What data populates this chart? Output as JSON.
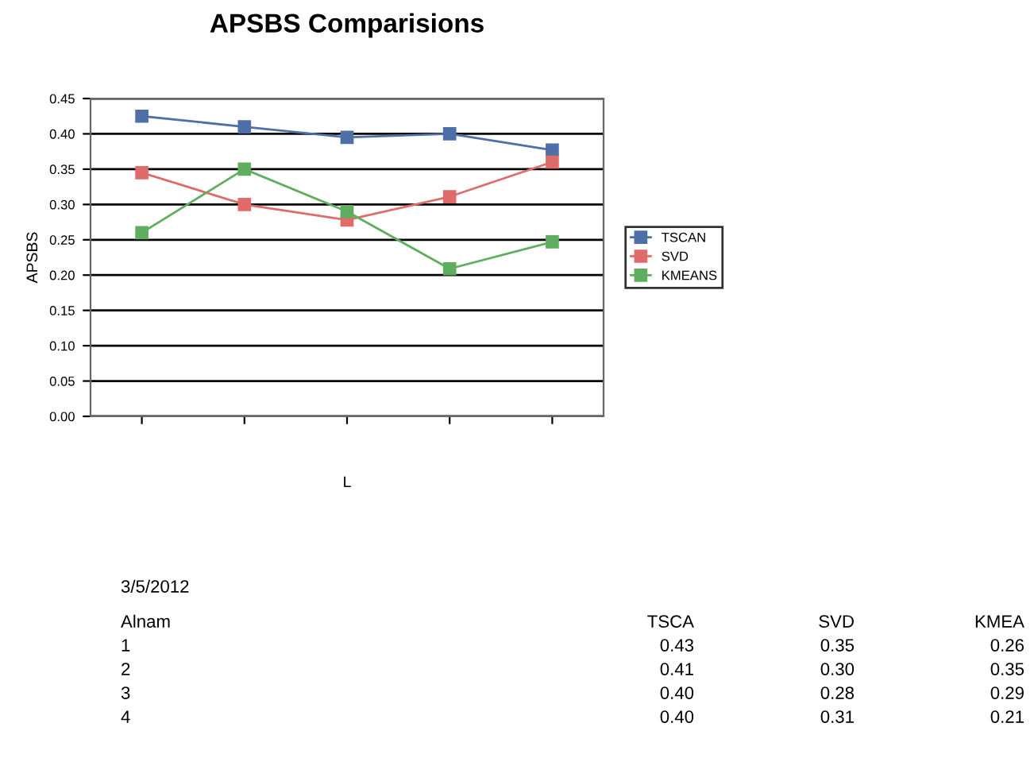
{
  "chart_data": {
    "type": "line",
    "title": "APSBS Comparisions",
    "xlabel": "L",
    "ylabel": "APSBS",
    "categories": [
      null,
      null,
      null,
      null,
      null
    ],
    "series": [
      {
        "name": "TSCAN",
        "color": "#4f6fa8",
        "values": [
          0.425,
          0.41,
          0.395,
          0.4,
          0.377
        ]
      },
      {
        "name": "SVD",
        "color": "#e06b6b",
        "values": [
          0.345,
          0.3,
          0.278,
          0.311,
          0.36
        ]
      },
      {
        "name": "KMEANS",
        "color": "#5fae5f",
        "values": [
          0.26,
          0.35,
          0.29,
          0.209,
          0.247
        ]
      }
    ],
    "ylim": [
      0,
      0.45
    ],
    "yticks": [
      {
        "value": 0,
        "label": "0.00"
      },
      {
        "value": 0.05,
        "label": "0.05"
      },
      {
        "value": 0.1,
        "label": "0.10"
      },
      {
        "value": 0.15,
        "label": "0.15"
      },
      {
        "value": 0.2,
        "label": "0.20"
      },
      {
        "value": 0.25,
        "label": "0.25"
      },
      {
        "value": 0.3,
        "label": "0.30"
      },
      {
        "value": 0.35,
        "label": "0.35"
      },
      {
        "value": 0.4,
        "label": "0.40"
      },
      {
        "value": 0.45,
        "label": "0.45"
      }
    ],
    "grid": "y",
    "legend": "right",
    "marker": "square",
    "line_style": "solid",
    "annotations": [
      "3/5/2012",
      "Alnam",
      "TSCA",
      "SVD",
      "KMEA",
      "1",
      "0.43",
      "0.35",
      "0.26",
      "2",
      "0.41",
      "0.30",
      "0.35",
      "3",
      "0.40",
      "0.28",
      "0.29",
      "4",
      "0.40",
      "0.31",
      "0.21"
    ]
  }
}
